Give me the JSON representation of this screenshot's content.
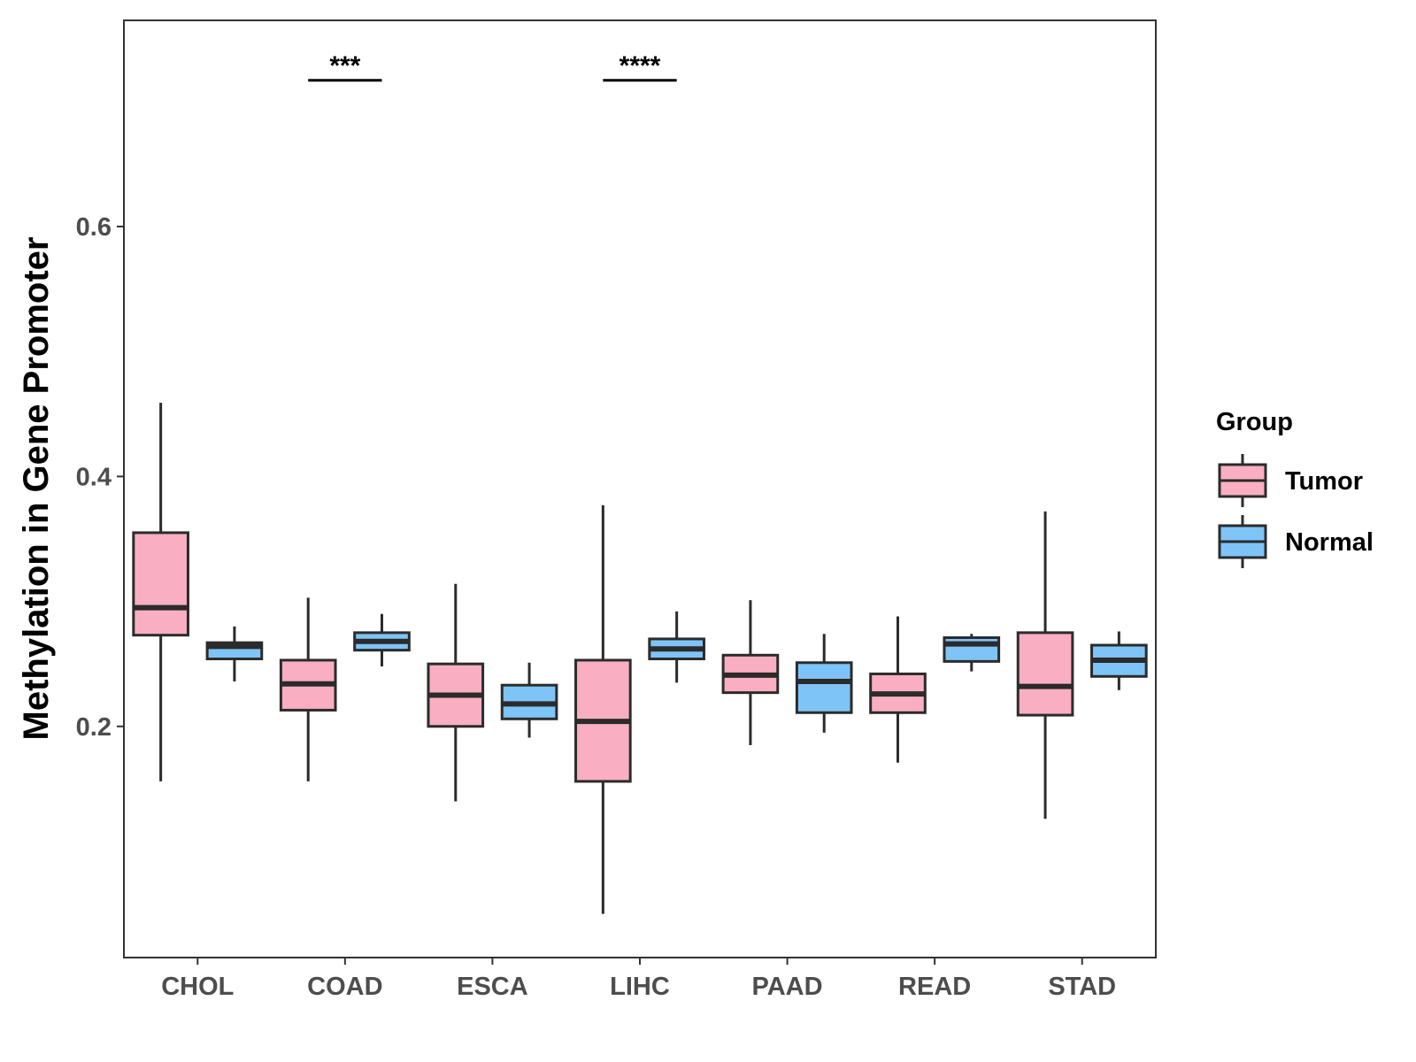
{
  "chart_data": {
    "type": "boxplot",
    "title": "",
    "xlabel": "",
    "ylabel": "Methylation in Gene Promoter",
    "ylim": [
      0.015,
      0.765
    ],
    "yticks": [
      0.2,
      0.4,
      0.6
    ],
    "ytick_labels": [
      "0.2",
      "0.4",
      "0.6"
    ],
    "grid": false,
    "legend": {
      "title": "Group",
      "placement": "right",
      "items": [
        {
          "name": "Tumor",
          "color": "#F9AFC1"
        },
        {
          "name": "Normal",
          "color": "#7EC4F7"
        }
      ]
    },
    "categories": [
      "CHOL",
      "COAD",
      "ESCA",
      "LIHC",
      "PAAD",
      "READ",
      "STAD"
    ],
    "series": [
      {
        "name": "Tumor",
        "color": "#F9AFC1",
        "boxes": [
          {
            "min": 0.156,
            "q1": 0.273,
            "median": 0.295,
            "q3": 0.355,
            "max": 0.459
          },
          {
            "min": 0.156,
            "q1": 0.213,
            "median": 0.234,
            "q3": 0.253,
            "max": 0.303
          },
          {
            "min": 0.14,
            "q1": 0.2,
            "median": 0.225,
            "q3": 0.25,
            "max": 0.314
          },
          {
            "min": 0.05,
            "q1": 0.156,
            "median": 0.204,
            "q3": 0.253,
            "max": 0.377
          },
          {
            "min": 0.185,
            "q1": 0.227,
            "median": 0.241,
            "q3": 0.257,
            "max": 0.301
          },
          {
            "min": 0.171,
            "q1": 0.211,
            "median": 0.226,
            "q3": 0.242,
            "max": 0.288
          },
          {
            "min": 0.126,
            "q1": 0.209,
            "median": 0.232,
            "q3": 0.275,
            "max": 0.372
          }
        ]
      },
      {
        "name": "Normal",
        "color": "#7EC4F7",
        "boxes": [
          {
            "min": 0.236,
            "q1": 0.254,
            "median": 0.264,
            "q3": 0.267,
            "max": 0.28
          },
          {
            "min": 0.248,
            "q1": 0.261,
            "median": 0.268,
            "q3": 0.275,
            "max": 0.29
          },
          {
            "min": 0.191,
            "q1": 0.206,
            "median": 0.218,
            "q3": 0.233,
            "max": 0.251
          },
          {
            "min": 0.235,
            "q1": 0.254,
            "median": 0.262,
            "q3": 0.27,
            "max": 0.292
          },
          {
            "min": 0.195,
            "q1": 0.211,
            "median": 0.236,
            "q3": 0.251,
            "max": 0.274
          },
          {
            "min": 0.244,
            "q1": 0.252,
            "median": 0.266,
            "q3": 0.271,
            "max": 0.274
          },
          {
            "min": 0.229,
            "q1": 0.24,
            "median": 0.253,
            "q3": 0.265,
            "max": 0.276
          }
        ]
      }
    ],
    "annotations": [
      {
        "category": "COAD",
        "text": "***",
        "y": 0.717
      },
      {
        "category": "LIHC",
        "text": "****",
        "y": 0.717
      }
    ]
  }
}
